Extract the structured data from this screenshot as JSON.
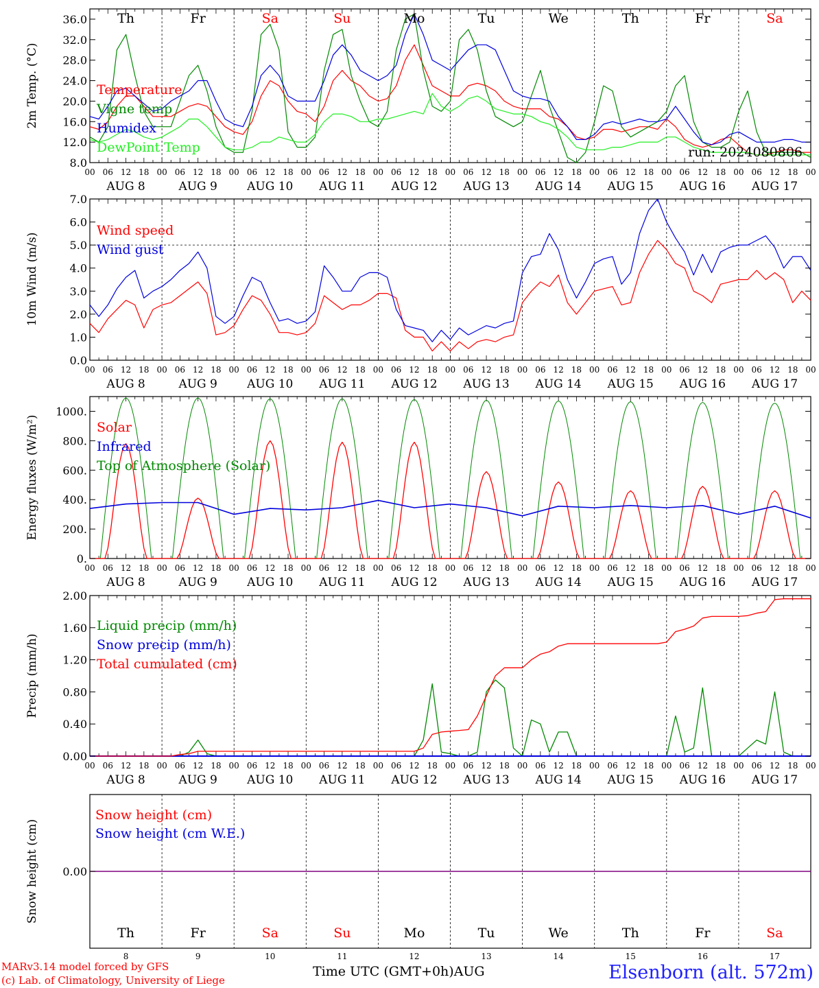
{
  "chart_data": [
    {
      "type": "line",
      "ylabel": "2m Temp. (°C)",
      "ylim": [
        8.0,
        38.0
      ],
      "yticks": [
        "8.0",
        "12.0",
        "16.0",
        "20.0",
        "24.0",
        "28.0",
        "32.0",
        "36.0"
      ],
      "annotation": "run: 2024080806",
      "x_hours": [
        0,
        3,
        6,
        9,
        12,
        15,
        18,
        21,
        24,
        27,
        30,
        33,
        36,
        39,
        42,
        45,
        48,
        51,
        54,
        57,
        60,
        63,
        66,
        69,
        72,
        75,
        78,
        81,
        84,
        87,
        90,
        93,
        96,
        99,
        102,
        105,
        108,
        111,
        114,
        117,
        120,
        123,
        126,
        129,
        132,
        135,
        138,
        141,
        144,
        147,
        150,
        153,
        156,
        159,
        162,
        165,
        168,
        171,
        174,
        177,
        180,
        183,
        186,
        189,
        192,
        195,
        198,
        201,
        204,
        207,
        210,
        213,
        216,
        219,
        222,
        225,
        228,
        231,
        234,
        237,
        240
      ],
      "series": [
        {
          "name": "Temperature",
          "color": "#ff0000",
          "values": [
            15,
            14.5,
            16,
            19,
            21,
            21,
            19,
            17,
            17,
            17,
            18,
            19,
            19.5,
            19,
            17,
            15,
            14,
            13.5,
            16,
            21,
            24,
            23,
            20,
            18,
            17.5,
            16,
            19,
            24,
            26,
            24,
            23,
            21,
            20,
            20.5,
            23,
            28,
            31,
            27,
            23,
            22,
            21,
            21,
            23,
            23.5,
            23,
            22,
            20,
            19,
            18.5,
            18.5,
            18.5,
            17,
            16.5,
            15,
            13,
            12.5,
            13,
            14.5,
            14.5,
            14,
            14.5,
            15,
            15,
            14.5,
            16.5,
            15,
            12.5,
            11.5,
            11,
            11.5,
            12.5,
            13,
            11.5,
            10,
            9.5,
            9.5,
            10,
            10.5,
            10.5,
            10,
            10
          ]
        },
        {
          "name": "Vigne temp",
          "color": "#008800",
          "values": [
            13,
            12,
            15,
            30,
            33,
            25,
            18,
            15,
            15,
            15,
            20,
            25,
            27,
            22,
            15,
            11,
            10,
            10,
            18,
            33,
            35,
            30,
            14,
            11,
            11,
            13,
            26,
            33,
            34,
            25,
            20,
            16,
            15,
            18,
            30,
            36,
            37,
            26,
            19,
            18,
            20,
            32,
            34,
            30,
            22,
            17,
            16,
            15,
            16,
            21,
            26,
            19,
            14,
            9,
            8,
            10,
            16,
            23,
            22,
            15,
            13,
            14,
            15,
            16,
            18,
            23,
            25,
            16,
            12,
            11,
            11,
            12,
            18,
            22,
            14,
            10,
            10,
            10,
            10,
            10,
            9
          ]
        },
        {
          "name": "Humidex",
          "color": "#0000dd",
          "values": [
            17,
            16.5,
            19,
            22,
            22.5,
            21,
            19.5,
            18,
            18.5,
            20,
            21,
            22,
            24,
            24,
            20,
            16.5,
            15.5,
            15,
            19,
            25,
            27,
            25,
            21,
            20,
            20,
            20,
            24,
            29,
            31,
            29,
            26,
            25,
            24,
            25,
            27,
            33,
            37,
            33,
            28,
            27,
            26,
            28,
            30,
            31,
            31,
            30,
            26,
            22,
            21,
            20.5,
            20.5,
            20,
            17,
            15,
            12.5,
            12.5,
            13.5,
            15.5,
            16,
            15.5,
            16,
            16.5,
            16,
            16,
            16.5,
            19,
            16.5,
            14,
            12,
            11.5,
            12,
            13.5,
            14,
            13,
            12,
            12,
            12,
            12.5,
            12.5,
            12,
            12
          ]
        },
        {
          "name": "DewPoint Temp",
          "color": "#22ee22",
          "values": [
            12.5,
            12,
            12.5,
            13.5,
            14.5,
            14,
            13,
            12.5,
            13,
            14,
            15,
            16.5,
            16.5,
            15,
            13,
            11,
            10.5,
            10.5,
            11,
            12,
            12,
            13,
            12.5,
            12,
            12,
            13.5,
            16,
            17.5,
            17.5,
            17,
            16,
            16,
            16.5,
            16.5,
            17,
            17.5,
            18,
            17.5,
            21.5,
            19,
            18,
            19,
            20.5,
            21,
            20,
            18.5,
            18,
            17.5,
            17.5,
            17,
            16,
            15.5,
            14.5,
            13,
            11,
            10.5,
            10.5,
            10.5,
            11,
            11,
            11.5,
            12,
            12,
            12,
            13,
            13,
            12,
            11,
            10.5,
            10,
            10,
            10,
            10,
            10,
            9.5,
            9.5,
            9.5,
            9.5,
            9.5,
            9.5,
            9.5
          ]
        }
      ]
    },
    {
      "type": "line",
      "ylabel": "10m Wind (m/s)",
      "ylim": [
        0.0,
        7.0
      ],
      "yticks": [
        "0.0",
        "1.0",
        "2.0",
        "3.0",
        "4.0",
        "5.0",
        "6.0",
        "7.0"
      ],
      "reference_line": 5.0,
      "x_hours": [
        0,
        3,
        6,
        9,
        12,
        15,
        18,
        21,
        24,
        27,
        30,
        33,
        36,
        39,
        42,
        45,
        48,
        51,
        54,
        57,
        60,
        63,
        66,
        69,
        72,
        75,
        78,
        81,
        84,
        87,
        90,
        93,
        96,
        99,
        102,
        105,
        108,
        111,
        114,
        117,
        120,
        123,
        126,
        129,
        132,
        135,
        138,
        141,
        144,
        147,
        150,
        153,
        156,
        159,
        162,
        165,
        168,
        171,
        174,
        177,
        180,
        183,
        186,
        189,
        192,
        195,
        198,
        201,
        204,
        207,
        210,
        213,
        216,
        219,
        222,
        225,
        228,
        231,
        234,
        237,
        240
      ],
      "series": [
        {
          "name": "Wind speed",
          "color": "#ff0000",
          "values": [
            1.6,
            1.2,
            1.8,
            2.2,
            2.6,
            2.4,
            1.4,
            2.2,
            2.4,
            2.5,
            2.8,
            3.1,
            3.4,
            2.9,
            1.1,
            1.2,
            1.5,
            2.2,
            2.8,
            2.6,
            2.0,
            1.2,
            1.2,
            1.1,
            1.2,
            1.6,
            2.8,
            2.5,
            2.2,
            2.4,
            2.4,
            2.6,
            2.9,
            2.9,
            2.7,
            1.3,
            1.0,
            1.0,
            0.4,
            0.8,
            0.4,
            0.8,
            0.5,
            0.8,
            0.9,
            0.8,
            1.0,
            1.1,
            2.5,
            3.0,
            3.4,
            3.2,
            3.7,
            2.5,
            2.0,
            2.5,
            3.0,
            3.1,
            3.2,
            2.4,
            2.5,
            3.8,
            4.6,
            5.2,
            4.8,
            4.2,
            4.0,
            3.0,
            2.8,
            2.5,
            3.3,
            3.4,
            3.5,
            3.5,
            3.9,
            3.5,
            3.8,
            3.5,
            2.5,
            3.0,
            2.6
          ]
        },
        {
          "name": "Wind gust",
          "color": "#0000dd",
          "values": [
            2.4,
            1.9,
            2.4,
            3.1,
            3.6,
            3.9,
            2.7,
            3.0,
            3.2,
            3.5,
            3.9,
            4.2,
            4.7,
            4.0,
            1.9,
            1.6,
            1.9,
            2.8,
            3.6,
            3.4,
            2.5,
            1.7,
            1.8,
            1.6,
            1.7,
            2.1,
            4.1,
            3.6,
            3.0,
            3.0,
            3.6,
            3.8,
            3.8,
            3.6,
            2.2,
            1.5,
            1.4,
            1.3,
            0.8,
            1.3,
            0.9,
            1.4,
            1.1,
            1.3,
            1.5,
            1.4,
            1.6,
            1.7,
            3.8,
            4.5,
            4.6,
            5.5,
            4.8,
            3.5,
            2.7,
            3.4,
            4.2,
            4.4,
            4.5,
            3.3,
            3.8,
            5.5,
            6.5,
            7.0,
            6.0,
            5.3,
            4.7,
            3.7,
            4.6,
            3.8,
            4.7,
            4.9,
            5.0,
            5.0,
            5.2,
            5.4,
            4.9,
            4.0,
            4.5,
            4.5,
            3.9
          ]
        }
      ]
    },
    {
      "type": "line",
      "ylabel": "Energy fluxes (W/m²)",
      "ylim": [
        0,
        1100
      ],
      "yticks": [
        "0.",
        "200.",
        "400.",
        "600.",
        "800.",
        "1000."
      ],
      "series": [
        {
          "name": "Solar",
          "color": "#ff0000",
          "peaks": [
            780,
            410,
            800,
            790,
            790,
            590,
            520,
            460,
            490,
            460
          ]
        },
        {
          "name": "Infrared",
          "color": "#0000dd",
          "daily_values": [
            340,
            370,
            380,
            380,
            300,
            340,
            330,
            345,
            395,
            345,
            370,
            345,
            290,
            355,
            345,
            360,
            345,
            360,
            300,
            355,
            275
          ]
        },
        {
          "name": "Top of Atmosphere (Solar)",
          "color": "#008800",
          "peaks": [
            1090,
            1090,
            1085,
            1085,
            1080,
            1075,
            1070,
            1065,
            1060,
            1055
          ]
        }
      ]
    },
    {
      "type": "line",
      "ylabel": "Precip (mm/h)",
      "ylim": [
        0.0,
        2.0
      ],
      "yticks": [
        "0.00",
        "0.40",
        "0.80",
        "1.20",
        "1.60",
        "2.00"
      ],
      "x_hours": [
        0,
        3,
        6,
        9,
        12,
        15,
        18,
        21,
        24,
        27,
        30,
        33,
        36,
        39,
        42,
        45,
        48,
        51,
        54,
        57,
        60,
        63,
        66,
        69,
        72,
        75,
        78,
        81,
        84,
        87,
        90,
        93,
        96,
        99,
        102,
        105,
        108,
        111,
        114,
        117,
        120,
        123,
        126,
        129,
        132,
        135,
        138,
        141,
        144,
        147,
        150,
        153,
        156,
        159,
        162,
        165,
        168,
        171,
        174,
        177,
        180,
        183,
        186,
        189,
        192,
        195,
        198,
        201,
        204,
        207,
        210,
        213,
        216,
        219,
        222,
        225,
        228,
        231,
        234,
        237,
        240
      ],
      "series": [
        {
          "name": "Liquid precip (mm/h)",
          "color": "#008800",
          "values": [
            0,
            0,
            0,
            0,
            0,
            0,
            0,
            0,
            0,
            0,
            0,
            0.05,
            0.2,
            0.03,
            0,
            0,
            0,
            0,
            0,
            0,
            0,
            0,
            0,
            0,
            0,
            0,
            0,
            0,
            0,
            0,
            0,
            0,
            0,
            0,
            0,
            0,
            0,
            0.2,
            0.9,
            0.05,
            0.03,
            0,
            0,
            0.05,
            0.8,
            0.95,
            0.85,
            0.1,
            0,
            0.45,
            0.4,
            0.05,
            0.3,
            0.3,
            0,
            0,
            0,
            0,
            0,
            0,
            0,
            0,
            0,
            0,
            0,
            0.5,
            0.05,
            0.1,
            0.85,
            0,
            0,
            0,
            0,
            0.1,
            0.2,
            0.15,
            0.8,
            0.05,
            0,
            0,
            0
          ]
        },
        {
          "name": "Snow precip (mm/h)",
          "color": "#0000dd",
          "values": [
            0,
            0,
            0,
            0,
            0,
            0,
            0,
            0,
            0,
            0,
            0,
            0,
            0,
            0,
            0,
            0,
            0,
            0,
            0,
            0,
            0,
            0,
            0,
            0,
            0,
            0,
            0,
            0,
            0,
            0,
            0,
            0,
            0,
            0,
            0,
            0,
            0,
            0,
            0,
            0,
            0,
            0,
            0,
            0,
            0,
            0,
            0,
            0,
            0,
            0,
            0,
            0,
            0,
            0,
            0,
            0,
            0,
            0,
            0,
            0,
            0,
            0,
            0,
            0,
            0,
            0,
            0,
            0,
            0,
            0,
            0,
            0,
            0,
            0,
            0,
            0,
            0,
            0,
            0,
            0,
            0
          ]
        },
        {
          "name": "Total cumulated (cm)",
          "color": "#ff0000",
          "values": [
            0,
            0,
            0,
            0,
            0,
            0,
            0,
            0,
            0,
            0,
            0.02,
            0.03,
            0.06,
            0.06,
            0.06,
            0.06,
            0.06,
            0.06,
            0.06,
            0.06,
            0.06,
            0.06,
            0.06,
            0.06,
            0.06,
            0.06,
            0.06,
            0.06,
            0.06,
            0.06,
            0.06,
            0.06,
            0.06,
            0.06,
            0.06,
            0.06,
            0.06,
            0.1,
            0.27,
            0.3,
            0.31,
            0.32,
            0.33,
            0.5,
            0.75,
            1.0,
            1.1,
            1.1,
            1.1,
            1.2,
            1.27,
            1.3,
            1.37,
            1.4,
            1.4,
            1.4,
            1.4,
            1.4,
            1.4,
            1.4,
            1.4,
            1.4,
            1.4,
            1.4,
            1.42,
            1.55,
            1.58,
            1.62,
            1.72,
            1.74,
            1.74,
            1.74,
            1.74,
            1.75,
            1.78,
            1.8,
            1.95,
            1.96,
            1.96,
            1.96,
            1.96
          ]
        }
      ]
    },
    {
      "type": "line",
      "ylabel": "Snow height (cm)",
      "yticks": [
        "0.00"
      ],
      "series": [
        {
          "name": "Snow height (cm)",
          "color": "#ff0000",
          "values": [
            0,
            0
          ]
        },
        {
          "name": "Snow height (cm W.E.)",
          "color": "#0000dd",
          "values": [
            0,
            0
          ]
        }
      ]
    }
  ],
  "axis": {
    "hour_ticks": [
      "00",
      "06",
      "12",
      "18"
    ],
    "date_labels": [
      "AUG  8",
      "AUG  9",
      "AUG 10",
      "AUG 11",
      "AUG 12",
      "AUG 13",
      "AUG 14",
      "AUG 15",
      "AUG 16",
      "AUG 17"
    ],
    "day_names": [
      "Th",
      "Fr",
      "Sa",
      "Su",
      "Mo",
      "Tu",
      "We",
      "Th",
      "Fr",
      "Sa"
    ],
    "day_colors": [
      "#000000",
      "#000000",
      "#ff0000",
      "#ff0000",
      "#000000",
      "#000000",
      "#000000",
      "#000000",
      "#000000",
      "#ff0000"
    ],
    "day_numbers": [
      "8",
      "9",
      "10",
      "11",
      "12",
      "13",
      "14",
      "15",
      "16",
      "17"
    ]
  },
  "footer": {
    "model_line": "MARv3.14 model forced by GFS",
    "credit_line": "(c) Lab. of Climatology, University of Liege",
    "time_axis_label": "Time UTC (GMT+0h)",
    "month": "AUG",
    "station": "Elsenborn (alt. 572m)"
  }
}
